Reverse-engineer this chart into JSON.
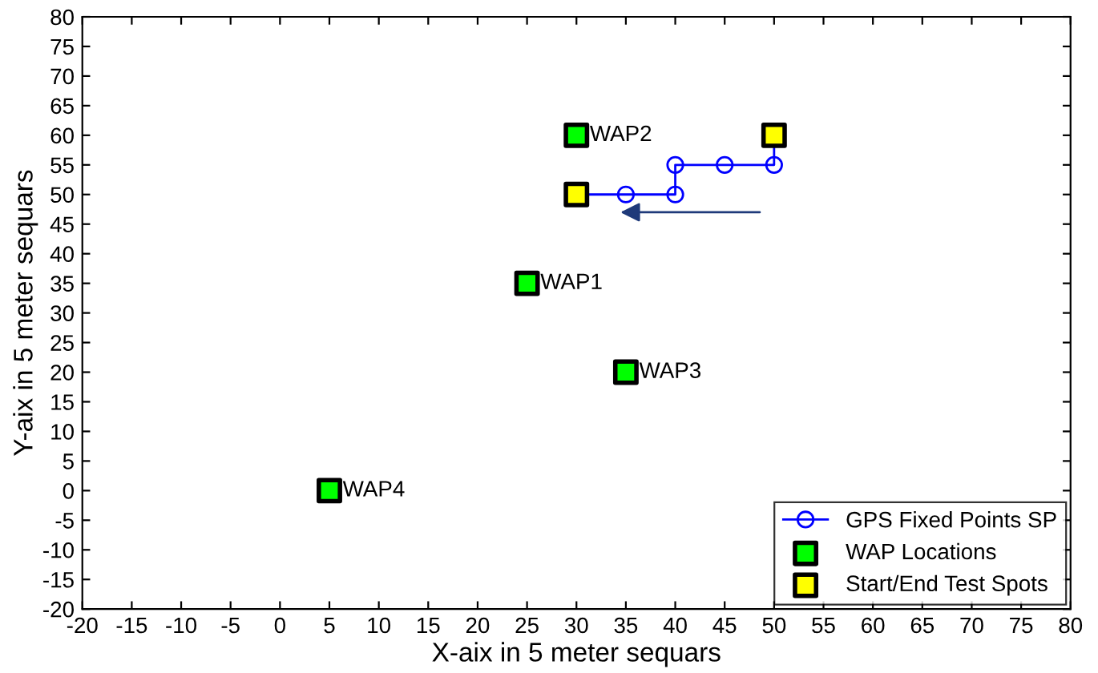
{
  "chart_data": {
    "type": "line",
    "xlabel": "X-aix in 5 meter sequars",
    "ylabel": "Y-aix in 5 meter sequars",
    "xlim": [
      -20,
      80
    ],
    "ylim": [
      -20,
      80
    ],
    "xticks": [
      -20,
      -15,
      -10,
      -5,
      0,
      5,
      10,
      15,
      20,
      25,
      30,
      35,
      40,
      45,
      50,
      55,
      60,
      65,
      70,
      75,
      80
    ],
    "yticks": [
      -20,
      -15,
      -10,
      -5,
      0,
      5,
      10,
      15,
      20,
      25,
      30,
      35,
      40,
      45,
      50,
      55,
      60,
      65,
      70,
      75,
      80
    ],
    "grid": false,
    "legend": "bottom right",
    "series": [
      {
        "name": "GPS Fixed Points SP",
        "color": "#0000ff",
        "marker": "circle",
        "line_style": "solid",
        "x": [
          50,
          50,
          45,
          40,
          40,
          35,
          30
        ],
        "values": [
          60,
          55,
          55,
          55,
          50,
          50,
          50
        ]
      },
      {
        "name": "WAP Locations",
        "type": "scatter",
        "color": "#00ff00",
        "marker": "square",
        "x": [
          25,
          30,
          35,
          5
        ],
        "values": [
          35,
          60,
          20,
          0
        ],
        "value_labels": [
          "WAP1",
          "WAP2",
          "WAP3",
          "WAP4"
        ]
      },
      {
        "name": "Start/End Test Spots",
        "type": "scatter",
        "color": "#ffff00",
        "marker": "square",
        "x": [
          30,
          50
        ],
        "values": [
          50,
          60
        ]
      }
    ]
  }
}
